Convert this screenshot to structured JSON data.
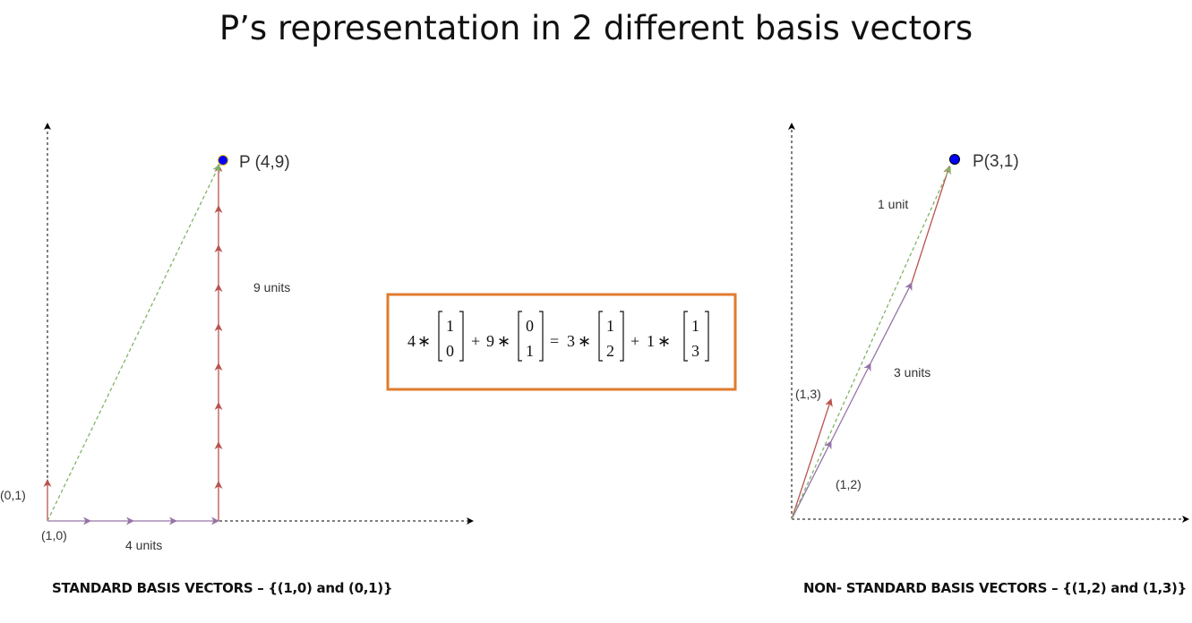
{
  "title": "P’s representation in 2 different basis vectors",
  "left_diagram": {
    "point_label": "P (4,9)",
    "e1_label": "(1,0)",
    "e2_label": "(0,1)",
    "x_units_label": "4 units",
    "y_units_label": "9 units",
    "caption": "STANDARD BASIS VECTORS – {(1,0) and (0,1)}"
  },
  "right_diagram": {
    "point_label": "P(3,1)",
    "b1_label": "(1,2)",
    "b2_label": "(1,3)",
    "b1_units_label": "3 units",
    "b2_units_label": "1 unit",
    "caption": "NON- STANDARD BASIS VECTORS – {(1,2) and (1,3)}"
  },
  "equation": {
    "c1": "4",
    "v1": [
      "1",
      "0"
    ],
    "c2": "9",
    "v2": [
      "0",
      "1"
    ],
    "c3": "3",
    "v3": [
      "1",
      "2"
    ],
    "c4": "1",
    "v4": [
      "1",
      "3"
    ],
    "times": "∗",
    "plus": "+",
    "equals": "="
  },
  "colors": {
    "axis": "#000000",
    "red_vector": "#b85450",
    "purple_vector": "#9673a6",
    "green_dashed": "#82b366",
    "point": "#0000ff",
    "box_border": "#e07b2e"
  }
}
